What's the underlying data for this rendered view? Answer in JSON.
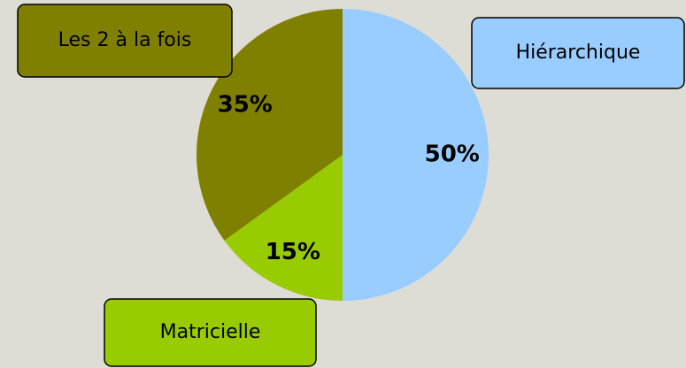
{
  "chart_data": {
    "type": "pie",
    "categories": [
      "Hiérarchique",
      "Matricielle",
      "Les 2 à la fois"
    ],
    "values": [
      50,
      15,
      35
    ],
    "value_labels": [
      "50%",
      "15%",
      "35%"
    ],
    "colors": [
      "#99ccff",
      "#99cc00",
      "#808000"
    ]
  }
}
